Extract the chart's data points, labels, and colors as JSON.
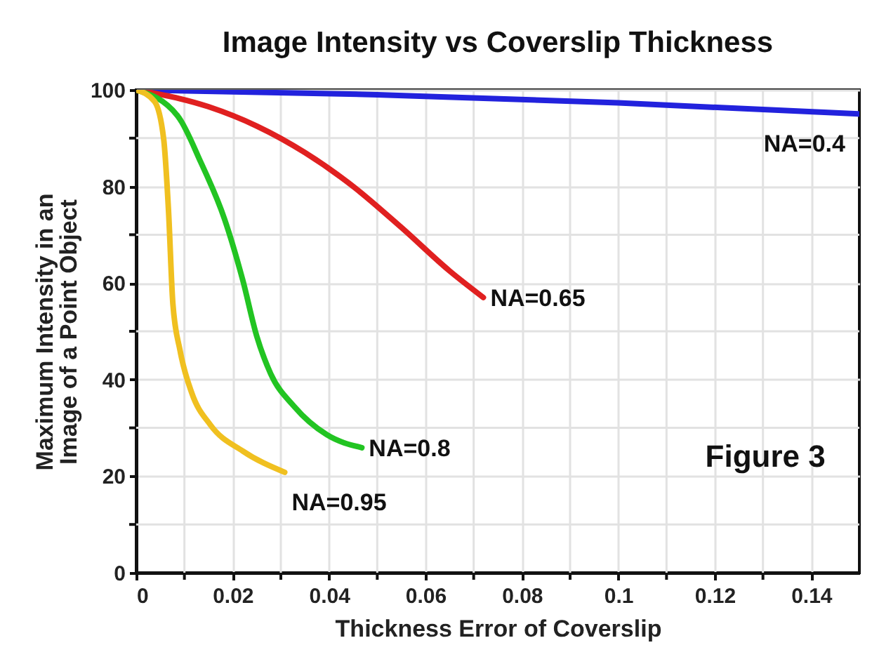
{
  "chart_data": {
    "type": "line",
    "title": "Image Intensity vs Coverslip Thickness",
    "xlabel": "Thickness Error of Coverslip",
    "ylabel": "Maximum Intensity in an\nImage of a Point Object",
    "xlim": [
      0,
      0.15
    ],
    "ylim": [
      0,
      100
    ],
    "xticks": [
      0,
      {
        "value": 0.01,
        "label": null
      },
      0.02,
      {
        "value": 0.03,
        "label": null
      },
      0.04,
      {
        "value": 0.05,
        "label": null
      },
      0.06,
      {
        "value": 0.07,
        "label": null
      },
      0.08,
      {
        "value": 0.09,
        "label": null
      },
      0.1,
      {
        "value": 0.11,
        "label": null
      },
      0.12,
      {
        "value": 0.13,
        "label": null
      },
      0.14
    ],
    "yticks": [
      0,
      {
        "value": 10,
        "label": null
      },
      20,
      {
        "value": 30,
        "label": null
      },
      40,
      {
        "value": 50,
        "label": null
      },
      60,
      {
        "value": 70,
        "label": null
      },
      80,
      {
        "value": 90,
        "label": null
      },
      100
    ],
    "grid": true,
    "line_style": "solid",
    "marker": "none",
    "annotations": [
      "Figure 3"
    ],
    "series": [
      {
        "name": "NA=0.4",
        "color": "#2222dd",
        "x": [
          0,
          0.05,
          0.1,
          0.15
        ],
        "values": [
          100,
          99,
          97.3,
          95
        ]
      },
      {
        "name": "NA=0.65",
        "color": "#e02020",
        "x": [
          0,
          0.015,
          0.025,
          0.035,
          0.045,
          0.055,
          0.065,
          0.072
        ],
        "values": [
          100,
          96.5,
          92.5,
          87,
          80,
          71.5,
          62.5,
          57
        ]
      },
      {
        "name": "NA=0.8",
        "color": "#22c422",
        "x": [
          0,
          0.0086,
          0.0134,
          0.0183,
          0.0221,
          0.025,
          0.0279,
          0.0328,
          0.0395,
          0.0468
        ],
        "values": [
          100,
          94.6,
          85,
          73.3,
          60.6,
          49,
          41.2,
          34.4,
          28.6,
          25.9
        ]
      },
      {
        "name": "NA=0.95",
        "color": "#f0c020",
        "x": [
          0,
          0.0038,
          0.0057,
          0.0067,
          0.0076,
          0.0091,
          0.0115,
          0.0154,
          0.0221,
          0.0308
        ],
        "values": [
          100,
          97.6,
          89.8,
          75,
          55.8,
          46,
          37.3,
          30.6,
          25.2,
          20.8
        ]
      }
    ]
  }
}
